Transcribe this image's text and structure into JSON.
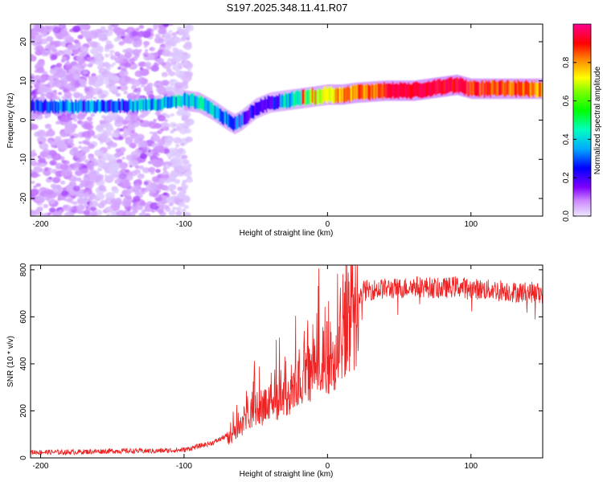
{
  "chart_data": [
    {
      "type": "heatmap",
      "title": "S197.2025.348.11.41.R07",
      "xlabel": "Height of straight line (km)",
      "ylabel": "Frequency (Hz)",
      "xlim": [
        -207,
        150
      ],
      "ylim": [
        -24.5,
        24.5
      ],
      "xticks": [
        -200,
        -100,
        0,
        100
      ],
      "xtick_labels": [
        "-200",
        "-100",
        "0",
        "100"
      ],
      "yticks": [
        -20,
        -10,
        0,
        10,
        20
      ],
      "ytick_labels": [
        "-20",
        "-10",
        "0",
        "10",
        "20"
      ],
      "colorbar": {
        "label": "Normalized spectral amplitude",
        "range": [
          0,
          1
        ],
        "ticks": [
          0.0,
          0.2,
          0.4,
          0.6,
          0.8
        ],
        "tick_labels": [
          "0.0",
          "0.2",
          "0.4",
          "0.6",
          "0.8"
        ],
        "colors": [
          "#e6e6ff",
          "#cc88ff",
          "#8000ff",
          "#0000ff",
          "#00c8ff",
          "#00ff80",
          "#80ff00",
          "#ffff00",
          "#ff8000",
          "#ff0000",
          "#ff0080"
        ]
      },
      "ridge": {
        "x": [
          -207,
          -180,
          -150,
          -120,
          -100,
          -90,
          -80,
          -70,
          -65,
          -60,
          -50,
          -40,
          -30,
          -20,
          -10,
          0,
          10,
          20,
          40,
          60,
          80,
          90,
          100,
          120,
          150
        ],
        "frequency": [
          3.5,
          3.5,
          3.5,
          4,
          5,
          4.5,
          2.5,
          0,
          -1,
          0,
          3,
          4.5,
          5,
          5.5,
          6,
          6.5,
          6.5,
          7,
          7.5,
          7.5,
          8.5,
          9,
          8,
          8,
          8
        ],
        "amplitude": [
          0.3,
          0.35,
          0.3,
          0.4,
          0.4,
          0.45,
          0.4,
          0.35,
          0.3,
          0.3,
          0.25,
          0.25,
          0.4,
          0.5,
          0.6,
          0.7,
          0.75,
          0.8,
          0.85,
          0.9,
          0.95,
          0.95,
          0.9,
          0.85,
          0.8
        ]
      }
    },
    {
      "type": "line",
      "xlabel": "Height of straight line (km)",
      "ylabel": "SNR (10 * v/v)",
      "xlim": [
        -207,
        150
      ],
      "ylim": [
        0,
        820
      ],
      "xticks": [
        -200,
        -100,
        0,
        100
      ],
      "xtick_labels": [
        "-200",
        "-100",
        "0",
        "100"
      ],
      "yticks": [
        0,
        200,
        400,
        600,
        800
      ],
      "ytick_labels": [
        "0",
        "200",
        "400",
        "600",
        "800"
      ],
      "color": "#ee2222",
      "series": [
        {
          "name": "SNR",
          "x": [
            -207,
            -180,
            -150,
            -120,
            -100,
            -90,
            -80,
            -70,
            -60,
            -55,
            -50,
            -45,
            -40,
            -35,
            -30,
            -25,
            -20,
            -15,
            -10,
            -5,
            0,
            5,
            10,
            15,
            20,
            25,
            30,
            40,
            50,
            60,
            70,
            80,
            90,
            100,
            110,
            120,
            130,
            140,
            150
          ],
          "y": [
            20,
            20,
            25,
            25,
            30,
            45,
            60,
            90,
            160,
            220,
            250,
            240,
            260,
            290,
            300,
            340,
            380,
            410,
            440,
            460,
            480,
            520,
            580,
            650,
            690,
            710,
            715,
            720,
            720,
            730,
            725,
            720,
            730,
            720,
            715,
            715,
            705,
            705,
            700
          ]
        }
      ]
    }
  ]
}
